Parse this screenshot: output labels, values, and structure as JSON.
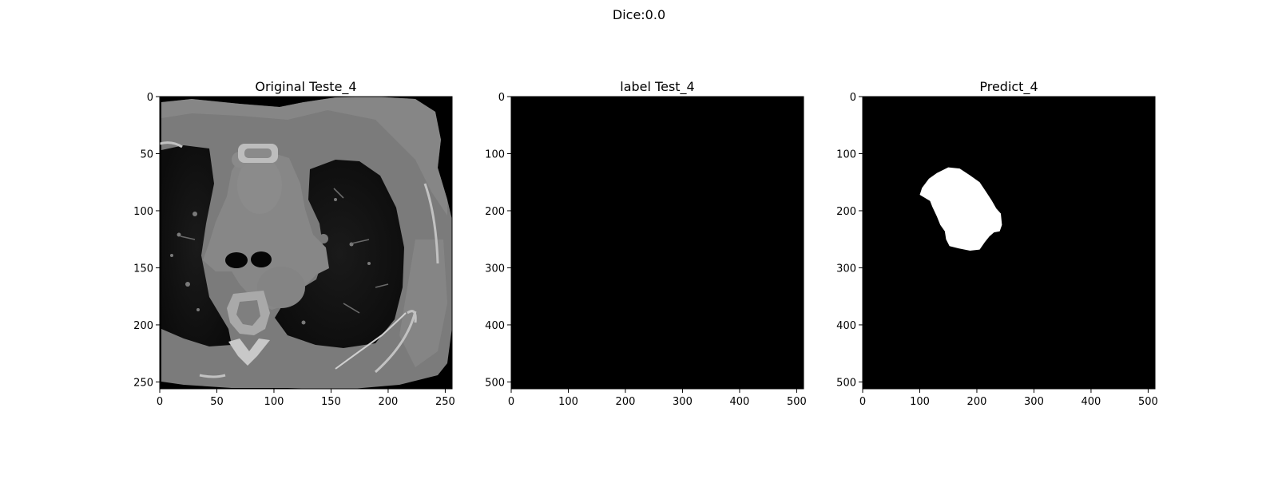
{
  "figure": {
    "suptitle": "Dice:0.0"
  },
  "chart_data": [
    {
      "type": "image",
      "title": "Original Teste_4",
      "content": "axial chest CT slice, grayscale",
      "xlim": [
        0,
        256
      ],
      "ylim": [
        256,
        0
      ],
      "xticks": [
        0,
        50,
        100,
        150,
        200,
        250
      ],
      "yticks": [
        0,
        50,
        100,
        150,
        200,
        250
      ]
    },
    {
      "type": "image",
      "title": "label Test_4",
      "content": "empty mask (all black)",
      "xlim": [
        0,
        512
      ],
      "ylim": [
        512,
        0
      ],
      "xticks": [
        0,
        100,
        200,
        300,
        400,
        500
      ],
      "yticks": [
        0,
        100,
        200,
        300,
        400,
        500
      ]
    },
    {
      "type": "image",
      "title": "Predict_4",
      "content": "binary mask with a single white region",
      "xlim": [
        0,
        512
      ],
      "ylim": [
        512,
        0
      ],
      "xticks": [
        0,
        100,
        200,
        300,
        400,
        500
      ],
      "yticks": [
        0,
        100,
        200,
        300,
        400,
        500
      ],
      "mask_region_outline": [
        [
          150,
          124
        ],
        [
          170,
          126
        ],
        [
          188,
          138
        ],
        [
          205,
          150
        ],
        [
          217,
          168
        ],
        [
          226,
          182
        ],
        [
          234,
          196
        ],
        [
          242,
          205
        ],
        [
          244,
          225
        ],
        [
          240,
          236
        ],
        [
          230,
          238
        ],
        [
          222,
          245
        ],
        [
          214,
          255
        ],
        [
          205,
          268
        ],
        [
          188,
          270
        ],
        [
          168,
          266
        ],
        [
          152,
          262
        ],
        [
          146,
          250
        ],
        [
          144,
          236
        ],
        [
          136,
          225
        ],
        [
          130,
          210
        ],
        [
          122,
          193
        ],
        [
          118,
          183
        ],
        [
          100,
          172
        ],
        [
          104,
          160
        ],
        [
          116,
          144
        ],
        [
          130,
          134
        ]
      ]
    }
  ]
}
